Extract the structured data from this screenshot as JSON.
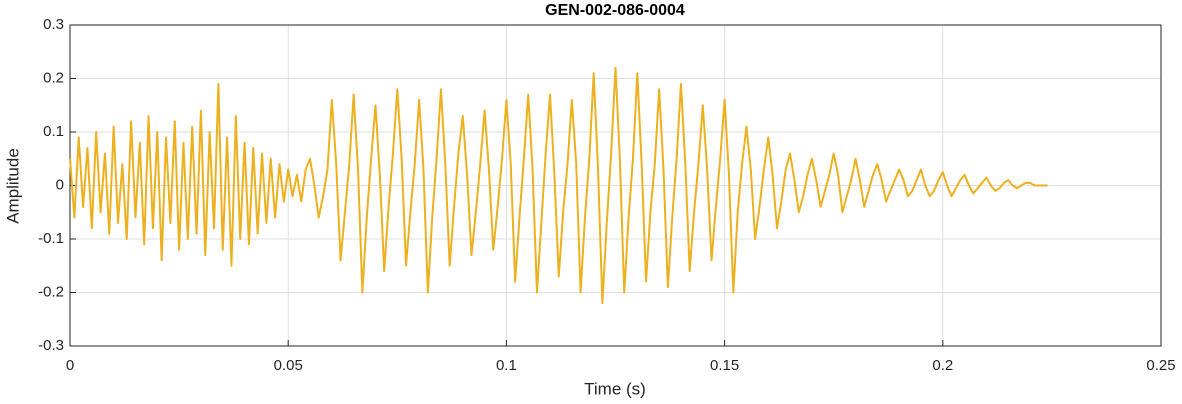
{
  "chart_data": {
    "type": "line",
    "title": "GEN-002-086-0004",
    "x_label": "Time (s)",
    "y_label": "Amplitude",
    "color": "#EDB120",
    "grid": true,
    "xlim": [
      0,
      0.25
    ],
    "xticks": [
      0,
      0.05,
      0.1,
      0.15,
      0.2,
      0.25
    ],
    "ylim": [
      -0.3,
      0.3
    ],
    "yticks": [
      -0.3,
      -0.2,
      -0.1,
      0,
      0.1,
      0.2,
      0.3
    ],
    "x": [
      0,
      0.001,
      0.002,
      0.003,
      0.004,
      0.005,
      0.006,
      0.007,
      0.008,
      0.009,
      0.01,
      0.011,
      0.012,
      0.013,
      0.014,
      0.015,
      0.016,
      0.017,
      0.018,
      0.019,
      0.02,
      0.021,
      0.022,
      0.023,
      0.024,
      0.025,
      0.026,
      0.027,
      0.028,
      0.029,
      0.03,
      0.031,
      0.032,
      0.033,
      0.034,
      0.035,
      0.036,
      0.037,
      0.038,
      0.039,
      0.04,
      0.041,
      0.042,
      0.043,
      0.044,
      0.045,
      0.046,
      0.047,
      0.048,
      0.049,
      0.05,
      0.051,
      0.052,
      0.053,
      0.054,
      0.055,
      0.056,
      0.057,
      0.058,
      0.059,
      0.06,
      0.061,
      0.062,
      0.063,
      0.064,
      0.065,
      0.066,
      0.067,
      0.068,
      0.069,
      0.07,
      0.071,
      0.072,
      0.073,
      0.074,
      0.075,
      0.076,
      0.077,
      0.078,
      0.079,
      0.08,
      0.081,
      0.082,
      0.083,
      0.084,
      0.085,
      0.086,
      0.087,
      0.088,
      0.089,
      0.09,
      0.091,
      0.092,
      0.093,
      0.094,
      0.095,
      0.096,
      0.097,
      0.098,
      0.099,
      0.1,
      0.101,
      0.102,
      0.103,
      0.104,
      0.105,
      0.106,
      0.107,
      0.108,
      0.109,
      0.11,
      0.111,
      0.112,
      0.113,
      0.114,
      0.115,
      0.116,
      0.117,
      0.118,
      0.119,
      0.12,
      0.121,
      0.122,
      0.123,
      0.124,
      0.125,
      0.126,
      0.127,
      0.128,
      0.129,
      0.13,
      0.131,
      0.132,
      0.133,
      0.134,
      0.135,
      0.136,
      0.137,
      0.138,
      0.139,
      0.14,
      0.141,
      0.142,
      0.143,
      0.144,
      0.145,
      0.146,
      0.147,
      0.148,
      0.149,
      0.15,
      0.151,
      0.152,
      0.153,
      0.154,
      0.155,
      0.156,
      0.157,
      0.158,
      0.159,
      0.16,
      0.161,
      0.162,
      0.163,
      0.164,
      0.165,
      0.166,
      0.167,
      0.168,
      0.169,
      0.17,
      0.171,
      0.172,
      0.173,
      0.174,
      0.175,
      0.176,
      0.177,
      0.178,
      0.179,
      0.18,
      0.181,
      0.182,
      0.183,
      0.184,
      0.185,
      0.186,
      0.187,
      0.188,
      0.189,
      0.19,
      0.191,
      0.192,
      0.193,
      0.194,
      0.195,
      0.196,
      0.197,
      0.198,
      0.199,
      0.2,
      0.201,
      0.202,
      0.203,
      0.204,
      0.205,
      0.206,
      0.207,
      0.208,
      0.209,
      0.21,
      0.211,
      0.212,
      0.213,
      0.214,
      0.215,
      0.216,
      0.217,
      0.218,
      0.219,
      0.22,
      0.221,
      0.222,
      0.223,
      0.224
    ],
    "values": [
      0.05,
      -0.06,
      0.09,
      -0.04,
      0.07,
      -0.08,
      0.1,
      -0.05,
      0.06,
      -0.09,
      0.11,
      -0.07,
      0.04,
      -0.1,
      0.12,
      -0.06,
      0.08,
      -0.11,
      0.13,
      -0.08,
      0.1,
      -0.14,
      0.09,
      -0.07,
      0.12,
      -0.12,
      0.08,
      -0.1,
      0.11,
      -0.09,
      0.14,
      -0.13,
      0.1,
      -0.08,
      0.19,
      -0.12,
      0.09,
      -0.15,
      0.13,
      -0.1,
      0.08,
      -0.11,
      0.07,
      -0.09,
      0.06,
      -0.07,
      0.05,
      -0.06,
      0.04,
      -0.03,
      0.03,
      -0.02,
      0.02,
      -0.03,
      0.03,
      0.05,
      0,
      -0.06,
      -0.02,
      0.03,
      0.16,
      0.04,
      -0.14,
      -0.05,
      0.04,
      0.17,
      0.03,
      -0.2,
      -0.06,
      0.05,
      0.15,
      0.02,
      -0.16,
      -0.04,
      0.06,
      0.18,
      0.05,
      -0.15,
      -0.05,
      0.04,
      0.16,
      0.03,
      -0.2,
      -0.06,
      0.05,
      0.18,
      0.04,
      -0.15,
      -0.04,
      0.06,
      0.13,
      0.02,
      -0.13,
      -0.05,
      0.04,
      0.14,
      0.03,
      -0.12,
      -0.04,
      0.05,
      0.16,
      0.04,
      -0.18,
      -0.06,
      0.05,
      0.17,
      0.03,
      -0.2,
      -0.07,
      0.06,
      0.17,
      0.02,
      -0.17,
      -0.05,
      0.04,
      0.16,
      0.04,
      -0.2,
      -0.06,
      0.05,
      0.21,
      0.03,
      -0.22,
      -0.07,
      0.06,
      0.22,
      0.05,
      -0.2,
      -0.06,
      0.05,
      0.21,
      0.04,
      -0.18,
      -0.05,
      0.04,
      0.18,
      0.03,
      -0.19,
      -0.06,
      0.05,
      0.19,
      0.04,
      -0.16,
      -0.05,
      0.04,
      0.15,
      0.03,
      -0.14,
      -0.04,
      0.05,
      0.16,
      0.02,
      -0.2,
      -0.05,
      0.04,
      0.11,
      0.03,
      -0.1,
      -0.04,
      0.03,
      0.09,
      0.02,
      -0.08,
      -0.03,
      0.03,
      0.06,
      0.01,
      -0.05,
      -0.02,
      0.02,
      0.05,
      0.01,
      -0.04,
      -0.01,
      0.02,
      0.06,
      0.02,
      -0.05,
      -0.02,
      0.01,
      0.05,
      0.01,
      -0.04,
      -0.01,
      0.02,
      0.04,
      0.01,
      -0.03,
      -0.01,
      0.01,
      0.03,
      0.01,
      -0.02,
      -0.01,
      0.01,
      0.03,
      0,
      -0.02,
      -0.01,
      0.01,
      0.025,
      0,
      -0.02,
      -0.005,
      0.01,
      0.02,
      0,
      -0.015,
      -0.005,
      0.005,
      0.015,
      0,
      -0.01,
      -0.005,
      0.005,
      0.01,
      0,
      -0.005,
      0,
      0.005,
      0.005,
      0,
      0,
      0,
      0
    ]
  }
}
